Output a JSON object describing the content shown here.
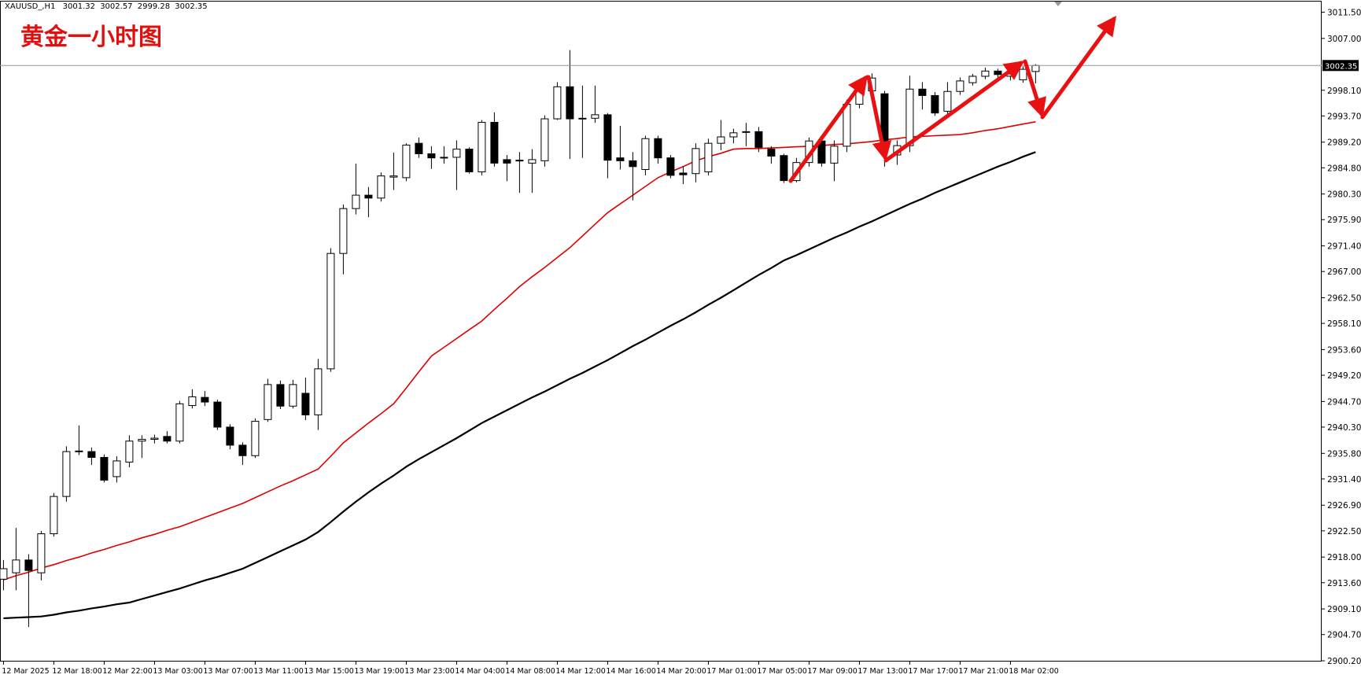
{
  "chart_data": {
    "type": "candlestick",
    "symbol": "XAUUSD_,H1",
    "title": "黄金一小时图",
    "categories": [
      "12 Mar 2025",
      null,
      null,
      null,
      "12 Mar 18:00",
      null,
      null,
      null,
      "12 Mar 22:00",
      null,
      null,
      null,
      "13 Mar 03:00",
      null,
      null,
      null,
      "13 Mar 07:00",
      null,
      null,
      null,
      "13 Mar 11:00",
      null,
      null,
      null,
      "13 Mar 15:00",
      null,
      null,
      null,
      "13 Mar 19:00",
      null,
      null,
      null,
      "13 Mar 23:00",
      null,
      null,
      null,
      "14 Mar 04:00",
      null,
      null,
      null,
      "14 Mar 08:00",
      null,
      null,
      null,
      "14 Mar 12:00",
      null,
      null,
      null,
      "14 Mar 16:00",
      null,
      null,
      null,
      "14 Mar 20:00",
      null,
      null,
      null,
      "17 Mar 01:00",
      null,
      null,
      null,
      "17 Mar 05:00",
      null,
      null,
      null,
      "17 Mar 09:00",
      null,
      null,
      null,
      "17 Mar 13:00",
      null,
      null,
      null,
      "17 Mar 17:00",
      null,
      null,
      null,
      "17 Mar 21:00",
      null,
      null,
      null,
      "18 Mar 02:00",
      null,
      null
    ],
    "open": [
      2914.2,
      2915.3,
      2917.5,
      2915.3,
      2922.0,
      2928.4,
      2936.1,
      2936.1,
      2935.1,
      2931.8,
      2934.3,
      2937.9,
      2938.2,
      2938.7,
      2937.9,
      2944.0,
      2945.4,
      2944.6,
      2940.3,
      2937.2,
      2935.4,
      2941.6,
      2947.6,
      2943.9,
      2946.1,
      2942.4,
      2950.3,
      2970.1,
      2977.8,
      2980.1,
      2979.6,
      2983.2,
      2983.1,
      2989.0,
      2987.2,
      2986.6,
      2986.6,
      2988.0,
      2984.1,
      2992.6,
      2986.2,
      2986.0,
      2985.6,
      2986.0,
      2993.2,
      2998.7,
      2993.2,
      2993.3,
      2993.9,
      2986.5,
      2986.0,
      2984.5,
      2989.8,
      2986.5,
      2983.9,
      2983.8,
      2984.1,
      2989.0,
      2990.1,
      2991.0,
      2991.0,
      2988.0,
      2986.9,
      2982.6,
      2985.7,
      2989.4,
      2985.6,
      2988.5,
      2995.7,
      2998.0,
      2997.5,
      2987.0,
      2988.6,
      2998.3,
      2997.2,
      2994.5,
      2997.9,
      2999.4,
      3000.5,
      3001.4,
      3000.5,
      2999.9,
      3001.32
    ],
    "high": [
      2917.5,
      2923.0,
      2918.5,
      2922.5,
      2929.0,
      2937.0,
      2940.6,
      2936.8,
      2935.6,
      2935.3,
      2938.9,
      2938.9,
      2939.0,
      2939.6,
      2944.8,
      2946.8,
      2946.5,
      2945.0,
      2940.8,
      2937.7,
      2941.8,
      2948.6,
      2948.3,
      2948.4,
      2948.8,
      2952.0,
      2971.0,
      2978.5,
      2985.5,
      2981.5,
      2984.0,
      2987.4,
      2989.0,
      2990.0,
      2988.5,
      2988.5,
      2989.5,
      2988.3,
      2993.0,
      2994.3,
      2987.0,
      2987.5,
      2988.0,
      2993.8,
      2999.5,
      3005.0,
      2998.9,
      2998.9,
      2994.2,
      2992.0,
      2987.5,
      2990.3,
      2990.3,
      2987.0,
      2985.0,
      2989.0,
      2989.8,
      2993.0,
      2991.5,
      2992.5,
      2991.8,
      2988.5,
      2987.2,
      2986.5,
      2990.0,
      2990.3,
      2989.5,
      2996.5,
      2999.0,
      3001.0,
      2998.0,
      2989.5,
      3000.6,
      2999.5,
      2997.8,
      2999.5,
      3000.3,
      3000.9,
      3002.0,
      3001.8,
      3001.5,
      3002.2,
      3002.57
    ],
    "low": [
      2912.3,
      2912.3,
      2906.0,
      2914.0,
      2921.5,
      2927.5,
      2935.5,
      2933.8,
      2930.8,
      2930.8,
      2933.4,
      2935.0,
      2937.5,
      2937.5,
      2937.5,
      2943.5,
      2943.9,
      2939.8,
      2936.5,
      2933.8,
      2935.0,
      2941.2,
      2943.4,
      2943.5,
      2941.5,
      2939.8,
      2949.8,
      2966.5,
      2976.8,
      2976.3,
      2979.0,
      2981.0,
      2982.5,
      2986.5,
      2984.6,
      2985.5,
      2981.0,
      2983.8,
      2983.5,
      2985.0,
      2982.5,
      2980.5,
      2980.5,
      2985.0,
      2993.0,
      2986.3,
      2986.5,
      2992.5,
      2983.0,
      2984.5,
      2979.2,
      2983.5,
      2985.5,
      2983.0,
      2982.0,
      2982.3,
      2983.5,
      2987.8,
      2989.0,
      2988.5,
      2987.5,
      2985.5,
      2982.2,
      2982.3,
      2985.0,
      2985.0,
      2982.5,
      2987.5,
      2995.0,
      2997.0,
      2985.0,
      2985.3,
      2987.5,
      2994.8,
      2993.7,
      2994.0,
      2997.3,
      2998.9,
      3000.0,
      3000.2,
      2999.8,
      2999.4,
      2999.28
    ],
    "close": [
      2916.0,
      2917.5,
      2915.7,
      2922.0,
      2928.4,
      2936.1,
      2936.2,
      2935.1,
      2931.2,
      2934.5,
      2937.9,
      2938.2,
      2938.4,
      2937.9,
      2944.3,
      2945.5,
      2944.6,
      2940.3,
      2937.2,
      2935.4,
      2941.3,
      2947.6,
      2943.9,
      2947.6,
      2942.4,
      2950.3,
      2970.1,
      2977.8,
      2980.1,
      2979.6,
      2983.4,
      2983.4,
      2988.7,
      2987.2,
      2986.5,
      2986.5,
      2988.0,
      2984.1,
      2992.6,
      2985.6,
      2985.6,
      2986.1,
      2986.2,
      2993.2,
      2998.7,
      2993.2,
      2993.3,
      2993.9,
      2986.1,
      2986.0,
      2985.0,
      2989.8,
      2986.5,
      2983.5,
      2983.6,
      2988.1,
      2989.0,
      2990.1,
      2990.8,
      2991.0,
      2988.3,
      2986.8,
      2982.6,
      2985.7,
      2989.4,
      2985.6,
      2988.5,
      2995.7,
      2998.3,
      3000.2,
      2988.3,
      2988.6,
      2998.3,
      2997.2,
      2994.2,
      2997.9,
      2999.7,
      3000.5,
      3001.4,
      3000.8,
      3000.9,
      3001.7,
      3002.35
    ],
    "up_color": "#ffffff",
    "down_color": "#000000",
    "wick_color": "#000000",
    "series": [
      {
        "color": "#e00000",
        "values": [
          2914.1,
          2914.8,
          2915.4,
          2916.1,
          2916.7,
          2917.4,
          2918.0,
          2918.7,
          2919.3,
          2920.0,
          2920.6,
          2921.3,
          2921.9,
          2922.6,
          2923.2,
          2924.0,
          2924.8,
          2925.6,
          2926.4,
          2927.2,
          2928.2,
          2929.2,
          2930.2,
          2931.1,
          2932.1,
          2933.1,
          2935.3,
          2937.6,
          2939.3,
          2941.0,
          2942.6,
          2944.3,
          2947.0,
          2949.8,
          2952.5,
          2954.0,
          2955.5,
          2957.0,
          2958.5,
          2960.5,
          2962.4,
          2964.4,
          2966.1,
          2967.7,
          2969.4,
          2971.1,
          2973.1,
          2975.1,
          2977.1,
          2978.6,
          2980.1,
          2981.6,
          2983.1,
          2984.1,
          2985.0,
          2986.0,
          2986.7,
          2987.3,
          2988.0,
          2988.1,
          2988.1,
          2988.2,
          2988.3,
          2988.4,
          2988.5,
          2988.6,
          2988.8,
          2988.9,
          2989.1,
          2989.3,
          2989.6,
          2989.8,
          2990.1,
          2990.2,
          2990.3,
          2990.4,
          2990.5,
          2990.8,
          2991.2,
          2991.5,
          2991.9,
          2992.3,
          2992.7
        ]
      },
      {
        "color": "#000000",
        "values": [
          2907.5,
          2907.6,
          2907.7,
          2907.8,
          2908.1,
          2908.5,
          2908.8,
          2909.2,
          2909.5,
          2909.9,
          2910.2,
          2910.8,
          2911.4,
          2912.0,
          2912.6,
          2913.3,
          2914.0,
          2914.6,
          2915.3,
          2916.0,
          2917.0,
          2918.0,
          2919.0,
          2920.0,
          2921.0,
          2922.3,
          2924.0,
          2925.8,
          2927.5,
          2929.1,
          2930.6,
          2932.0,
          2933.5,
          2934.8,
          2936.0,
          2937.2,
          2938.4,
          2939.7,
          2941.0,
          2942.1,
          2943.2,
          2944.3,
          2945.4,
          2946.4,
          2947.5,
          2948.6,
          2949.6,
          2950.7,
          2951.8,
          2953.0,
          2954.2,
          2955.3,
          2956.5,
          2957.7,
          2958.8,
          2960.0,
          2961.3,
          2962.5,
          2963.8,
          2965.1,
          2966.4,
          2967.6,
          2968.9,
          2969.8,
          2970.8,
          2971.8,
          2972.8,
          2973.7,
          2974.7,
          2975.6,
          2976.6,
          2977.6,
          2978.6,
          2979.5,
          2980.5,
          2981.4,
          2982.3,
          2983.2,
          2984.1,
          2985.0,
          2985.8,
          2986.7,
          2987.5
        ]
      }
    ],
    "ylim": [
      2900.07,
      3013.32
    ],
    "yticks": [
      {
        "value": 3011.5,
        "label": "3011.50"
      },
      {
        "value": 3007,
        "label": "3007.00"
      },
      {
        "value": 2998.1,
        "label": "2998.10"
      },
      {
        "value": 2993.7,
        "label": "2993.70"
      },
      {
        "value": 2989.2,
        "label": "2989.20"
      },
      {
        "value": 2984.8,
        "label": "2984.80"
      },
      {
        "value": 2980.3,
        "label": "2980.30"
      },
      {
        "value": 2975.9,
        "label": "2975.90"
      },
      {
        "value": 2971.4,
        "label": "2971.40"
      },
      {
        "value": 2967,
        "label": "2967.00"
      },
      {
        "value": 2962.5,
        "label": "2962.50"
      },
      {
        "value": 2958.1,
        "label": "2958.10"
      },
      {
        "value": 2953.6,
        "label": "2953.60"
      },
      {
        "value": 2949.2,
        "label": "2949.20"
      },
      {
        "value": 2944.7,
        "label": "2944.70"
      },
      {
        "value": 2940.3,
        "label": "2940.30"
      },
      {
        "value": 2935.8,
        "label": "2935.80"
      },
      {
        "value": 2931.4,
        "label": "2931.40"
      },
      {
        "value": 2926.9,
        "label": "2926.90"
      },
      {
        "value": 2922.5,
        "label": "2922.50"
      },
      {
        "value": 2918,
        "label": "2918.00"
      },
      {
        "value": 2913.6,
        "label": "2913.60"
      },
      {
        "value": 2909.1,
        "label": "2909.10"
      },
      {
        "value": 2904.7,
        "label": "2904.70"
      },
      {
        "value": 2900.2,
        "label": "2900.20"
      }
    ],
    "grid": false
  }
}
